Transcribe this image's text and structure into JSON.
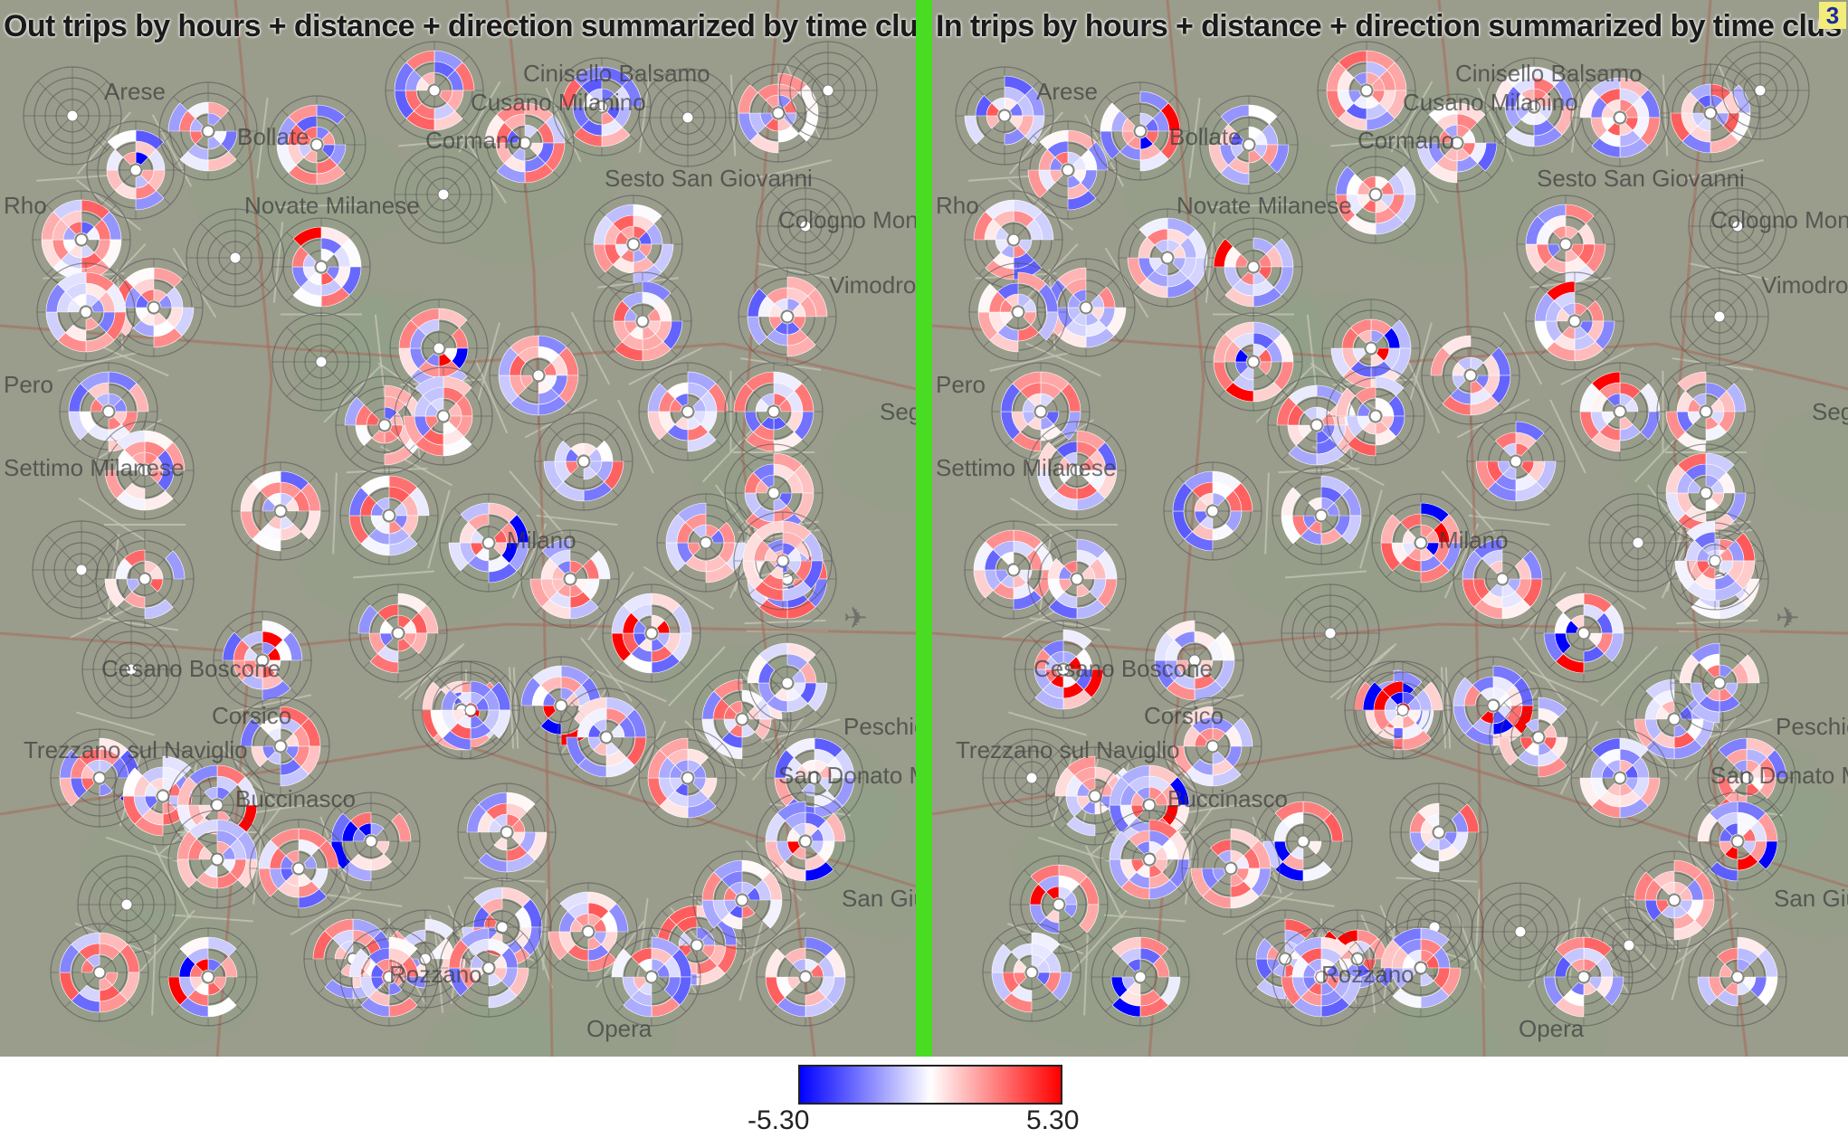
{
  "panels": [
    {
      "title": "Out trips by hours + distance + direction summarized by time clu",
      "places": [
        "Arese",
        "Bollate",
        "Cinisello Balsamo",
        "Cormano",
        "Cusano Milanino",
        "Sesto San Giovanni",
        "Novate Milanese",
        "Cologno Monzese",
        "Rho",
        "Vimodrone",
        "Pero",
        "Segrate",
        "Settimo Milanese",
        "Milano",
        "Cesano Boscone",
        "Corsico",
        "Trezzano sul Naviglio",
        "Buccinasco",
        "Peschiera Borromeo",
        "San Donato Milanese",
        "San Giuliano Milanese",
        "Rozzano",
        "Opera"
      ],
      "badge": ""
    },
    {
      "title": "In trips by hours + distance + direction summarized by time clus",
      "places": [
        "Arese",
        "Bollate",
        "Cinisello Balsamo",
        "Cormano",
        "Cusano Milanino",
        "Sesto San Giovanni",
        "Novate Milanese",
        "Cologno Monzese",
        "Rho",
        "Vimodrone",
        "Pero",
        "Segrate",
        "Settimo Milanese",
        "Milano",
        "Cesano Boscone",
        "Corsico",
        "Trezzano sul Naviglio",
        "Buccinasco",
        "Peschiera Borromeo",
        "San Donato Milanese",
        "San Giuliano Milanese",
        "Rozzano",
        "Opera"
      ],
      "badge": "3"
    }
  ],
  "legend": {
    "min_label": "-5.30",
    "max_label": "5.30",
    "min_color": "#0000ff",
    "mid_color": "#ffffff",
    "max_color": "#ff0000"
  },
  "colors": {
    "map_background": "#9a9c8c",
    "divider": "#48dc22",
    "road": "#a86a5a",
    "cell_border": "#c4c4b4"
  }
}
